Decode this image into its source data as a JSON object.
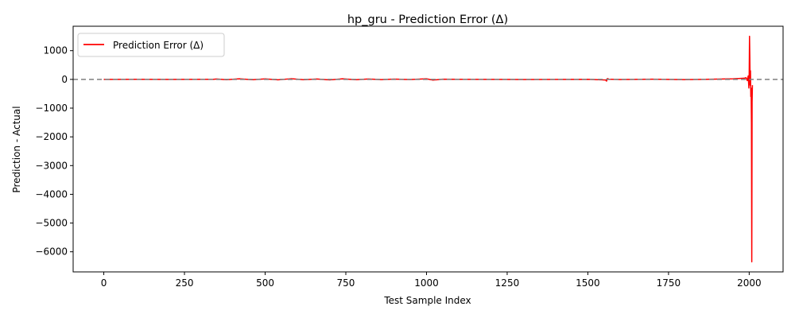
{
  "chart_data": {
    "type": "line",
    "title": "hp_gru - Prediction Error (Δ)",
    "xlabel": "Test Sample Index",
    "ylabel": "Prediction - Actual",
    "xlim": [
      -95,
      2105
    ],
    "ylim": [
      -6700,
      1850
    ],
    "xticks": [
      0,
      250,
      500,
      750,
      1000,
      1250,
      1500,
      1750,
      2000
    ],
    "yticks": [
      -6000,
      -5000,
      -4000,
      -3000,
      -2000,
      -1000,
      0,
      1000
    ],
    "grid": false,
    "legend_position": "top-left",
    "reference_line": {
      "y": 0,
      "style": "dashed",
      "color": "#7f7f7f"
    },
    "series": [
      {
        "name": "Prediction Error (Δ)",
        "color": "#ff0000",
        "x": [
          0,
          100,
          200,
          340,
          350,
          380,
          420,
          460,
          500,
          540,
          580,
          620,
          660,
          700,
          740,
          780,
          820,
          860,
          900,
          950,
          1000,
          1020,
          1050,
          1100,
          1300,
          1500,
          1555,
          1558,
          1561,
          1565,
          1600,
          1700,
          1800,
          1900,
          1950,
          1985,
          1990,
          1994,
          1997,
          1999,
          2000,
          2001,
          2002,
          2003,
          2004,
          2005,
          2006,
          2007,
          2008,
          2009,
          2010
        ],
        "values": [
          0,
          3,
          -2,
          4,
          15,
          -10,
          20,
          -12,
          18,
          -15,
          22,
          -10,
          15,
          -18,
          20,
          -12,
          14,
          -8,
          10,
          -5,
          20,
          -25,
          8,
          2,
          -3,
          4,
          -20,
          -60,
          30,
          5,
          -4,
          6,
          -8,
          10,
          20,
          40,
          60,
          -40,
          120,
          -300,
          200,
          1500,
          800,
          -200,
          300,
          -600,
          -300,
          -1500,
          -6350,
          -800,
          -200
        ]
      }
    ]
  }
}
